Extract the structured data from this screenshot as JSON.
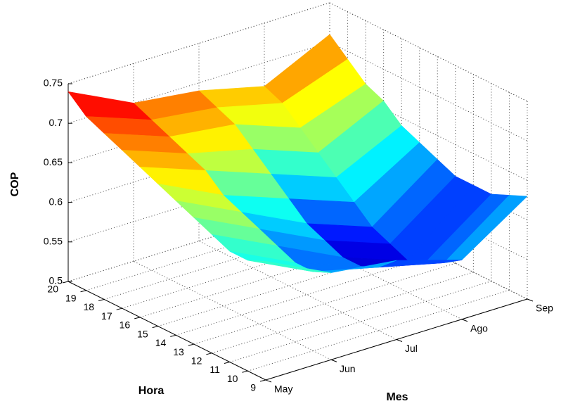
{
  "chart_data": {
    "type": "surface",
    "x_label": "Mes",
    "y_label": "Hora",
    "z_label": "COP",
    "categories": [
      "May",
      "Jun",
      "Jul",
      "Ago",
      "Sep"
    ],
    "y": [
      9,
      10,
      11,
      12,
      13,
      14,
      15,
      16,
      17,
      18,
      19,
      20
    ],
    "ylim": [
      9,
      20
    ],
    "yticks": [
      9,
      10,
      11,
      12,
      13,
      14,
      15,
      16,
      17,
      18,
      19,
      20
    ],
    "zlim": [
      0.5,
      0.75
    ],
    "zticks": [
      0.5,
      0.55,
      0.6,
      0.65,
      0.7,
      0.75
    ],
    "z": [
      [
        0.65,
        0.61,
        0.6,
        0.575,
        0.63
      ],
      [
        0.64,
        0.6,
        0.58,
        0.56,
        0.62
      ],
      [
        0.64,
        0.6,
        0.57,
        0.55,
        0.61
      ],
      [
        0.65,
        0.61,
        0.57,
        0.54,
        0.61
      ],
      [
        0.66,
        0.62,
        0.58,
        0.55,
        0.61
      ],
      [
        0.67,
        0.63,
        0.59,
        0.56,
        0.62
      ],
      [
        0.68,
        0.64,
        0.61,
        0.58,
        0.63
      ],
      [
        0.69,
        0.66,
        0.63,
        0.6,
        0.64
      ],
      [
        0.7,
        0.67,
        0.65,
        0.62,
        0.66
      ],
      [
        0.71,
        0.68,
        0.67,
        0.64,
        0.67
      ],
      [
        0.72,
        0.69,
        0.68,
        0.66,
        0.69
      ],
      [
        0.74,
        0.7,
        0.69,
        0.67,
        0.71
      ]
    ],
    "colormap": "jet",
    "grid": true
  }
}
